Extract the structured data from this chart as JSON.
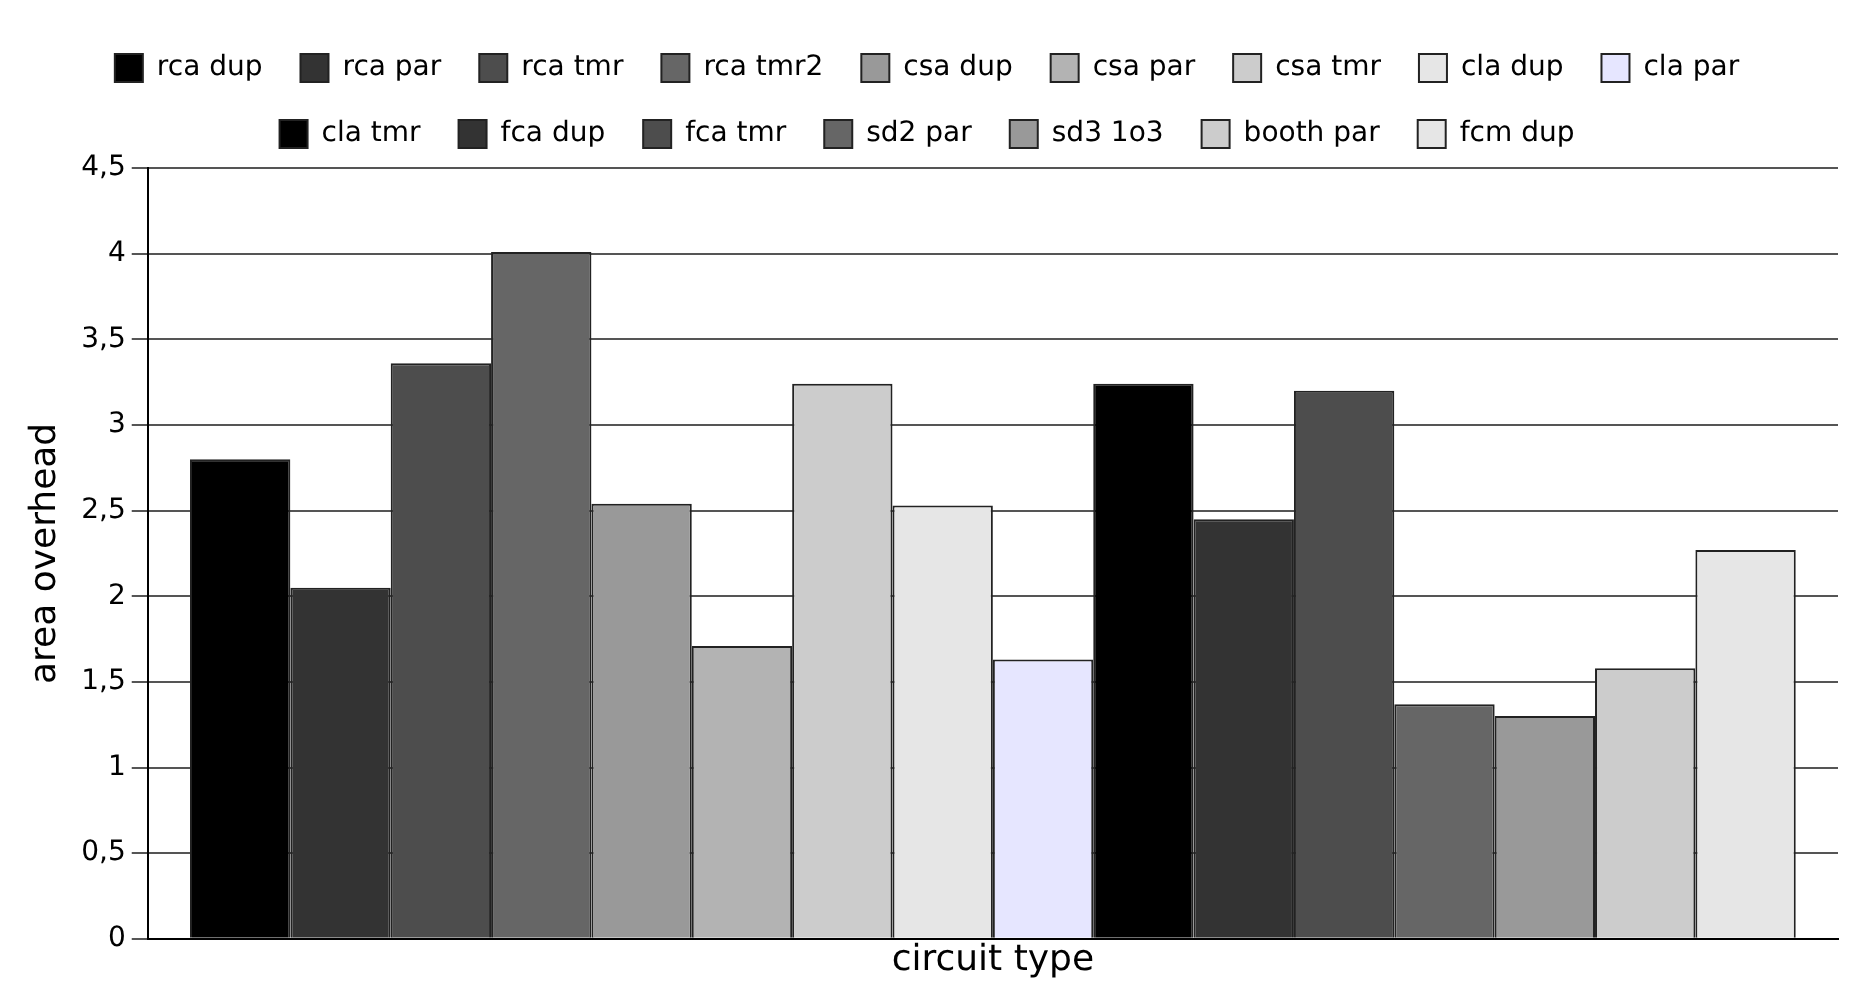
{
  "chart_data": {
    "type": "bar",
    "xlabel": "circuit type",
    "ylabel": "area overhead",
    "categories": [
      null
    ],
    "series": [
      {
        "name": "rca dup",
        "color": "#000000",
        "values": [
          2.8
        ]
      },
      {
        "name": "rca par",
        "color": "#333333",
        "values": [
          2.05
        ]
      },
      {
        "name": "rca tmr",
        "color": "#4d4d4d",
        "values": [
          3.36
        ]
      },
      {
        "name": "rca tmr2",
        "color": "#666666",
        "values": [
          4.01
        ]
      },
      {
        "name": "csa dup",
        "color": "#999999",
        "values": [
          2.54
        ]
      },
      {
        "name": "csa par",
        "color": "#b3b3b3",
        "values": [
          1.71
        ]
      },
      {
        "name": "csa tmr",
        "color": "#cccccc",
        "values": [
          3.24
        ]
      },
      {
        "name": "cla dup",
        "color": "#e6e6e6",
        "values": [
          2.53
        ]
      },
      {
        "name": "cla par",
        "color": "#e6e6ff",
        "values": [
          1.63
        ]
      },
      {
        "name": "cla tmr",
        "color": "#000000",
        "values": [
          3.24
        ]
      },
      {
        "name": "fca dup",
        "color": "#333333",
        "values": [
          2.45
        ]
      },
      {
        "name": "fca tmr",
        "color": "#4d4d4d",
        "values": [
          3.2
        ]
      },
      {
        "name": "sd2 par",
        "color": "#666666",
        "values": [
          1.37
        ]
      },
      {
        "name": "sd3 1o3",
        "color": "#999999",
        "values": [
          1.3
        ]
      },
      {
        "name": "booth par",
        "color": "#cccccc",
        "values": [
          1.58
        ]
      },
      {
        "name": "fcm dup",
        "color": "#e6e6e6",
        "values": [
          2.27
        ]
      }
    ],
    "ylim": [
      0,
      4.5
    ],
    "yticks": [
      0,
      {
        "value": 0.5,
        "label": "0,5"
      },
      1,
      {
        "value": 1.5,
        "label": "1,5"
      },
      2,
      {
        "value": 2.5,
        "label": "2,5"
      },
      3,
      {
        "value": 3.5,
        "label": "3,5"
      },
      4,
      {
        "value": 4.5,
        "label": "4,5"
      }
    ],
    "grid": "y",
    "legend": "top",
    "tick_labels": "y"
  }
}
